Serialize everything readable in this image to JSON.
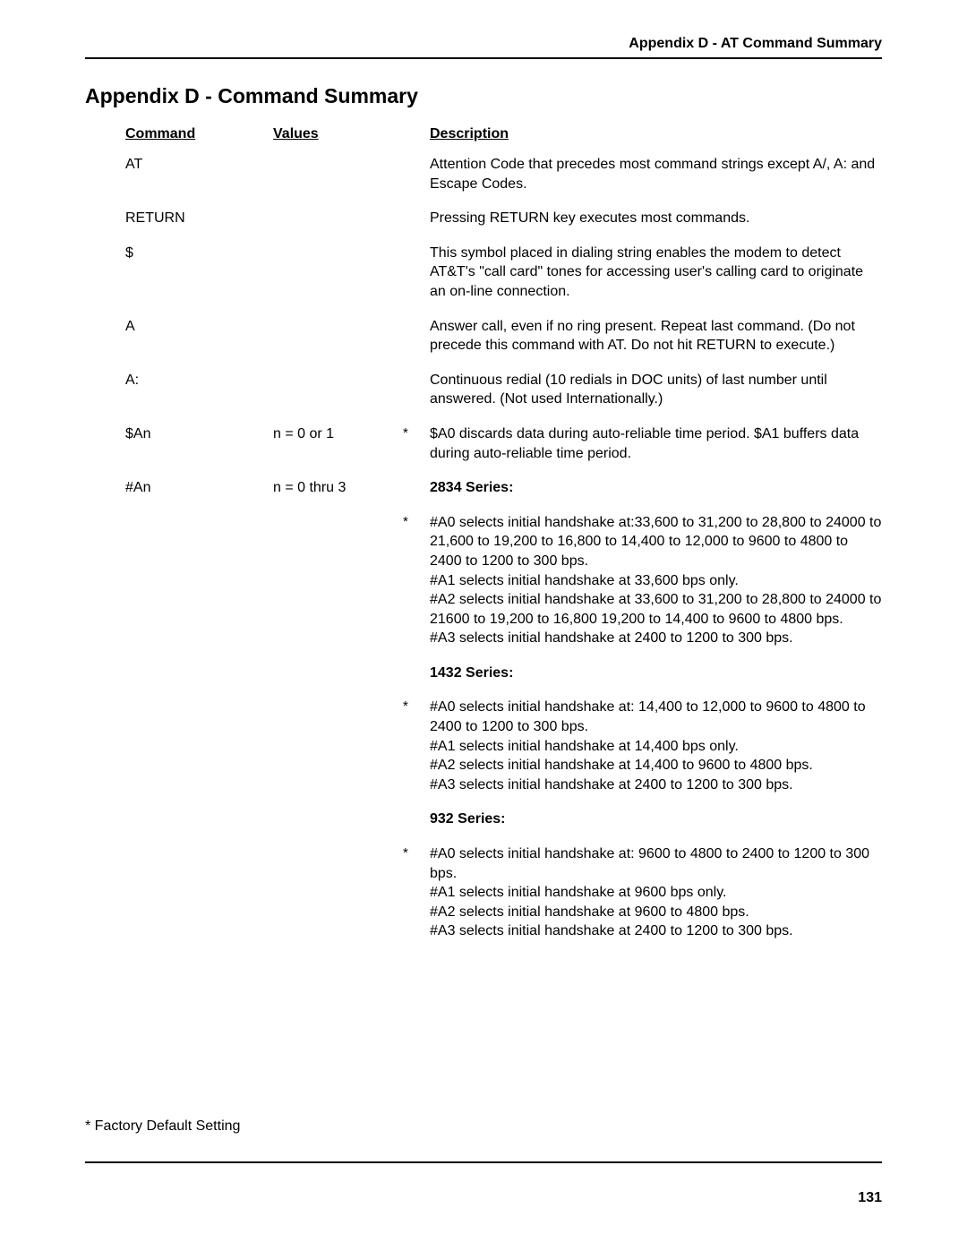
{
  "header": "Appendix D - AT Command Summary",
  "title": "Appendix D - Command Summary",
  "columns": {
    "command": "Command",
    "values": "Values",
    "description": "Description"
  },
  "rows": [
    {
      "command": "AT",
      "values": "",
      "star": "",
      "description": "Attention Code that precedes most command strings except A/, A: and Escape Codes."
    },
    {
      "command": "RETURN",
      "values": "",
      "star": "",
      "description": "Pressing RETURN key executes most commands."
    },
    {
      "command": "$",
      "values": "",
      "star": "",
      "description": "This symbol placed in dialing string enables the modem to detect AT&T's \"call card\" tones for accessing user's calling card to originate an on-line connection."
    },
    {
      "command": "A",
      "values": "",
      "star": "",
      "description": "Answer call, even if no ring present. Repeat last command. (Do not precede this command with AT. Do not hit RETURN to execute.)"
    },
    {
      "command": "A:",
      "values": "",
      "star": "",
      "description": "Continuous redial (10 redials in DOC units) of last number until answered. (Not used Internationally.)"
    },
    {
      "command": "$An",
      "values": "n = 0 or 1",
      "star": "*",
      "description": "$A0 discards data during auto-reliable time period. $A1 buffers data during auto-reliable time period."
    },
    {
      "command": "#An",
      "values": "n = 0 thru 3",
      "star": "",
      "description_bold": "2834 Series:"
    }
  ],
  "blocks": [
    {
      "star": "*",
      "text": "#A0 selects initial handshake at:33,600 to 31,200 to 28,800 to 24000 to 21,600 to 19,200 to 16,800 to 14,400 to 12,000 to 9600 to 4800 to 2400 to 1200 to 300 bps.\n#A1 selects initial handshake at 33,600 bps only.\n#A2 selects initial handshake at 33,600 to 31,200 to 28,800 to 24000 to 21600 to 19,200 to 16,800 19,200 to 14,400 to 9600 to 4800 bps.\n#A3 selects initial handshake at 2400 to 1200 to 300 bps."
    },
    {
      "star": "",
      "bold": true,
      "text": "1432 Series:"
    },
    {
      "star": "*",
      "text": "#A0 selects initial handshake at: 14,400 to 12,000 to 9600 to 4800 to 2400 to 1200 to 300 bps.\n#A1 selects initial handshake at 14,400 bps only.\n#A2 selects initial handshake at 14,400 to 9600 to 4800 bps.\n#A3 selects initial handshake at 2400 to 1200 to 300 bps."
    },
    {
      "star": "",
      "bold": true,
      "text": "932 Series:"
    },
    {
      "star": "*",
      "text": "#A0 selects initial handshake at: 9600 to 4800 to 2400 to 1200 to 300 bps.\n#A1 selects initial handshake at 9600 bps only.\n#A2 selects initial handshake at 9600 to 4800 bps.\n#A3 selects initial handshake at 2400 to 1200 to 300 bps."
    }
  ],
  "factory_note": "* Factory Default Setting",
  "page_number": "131"
}
